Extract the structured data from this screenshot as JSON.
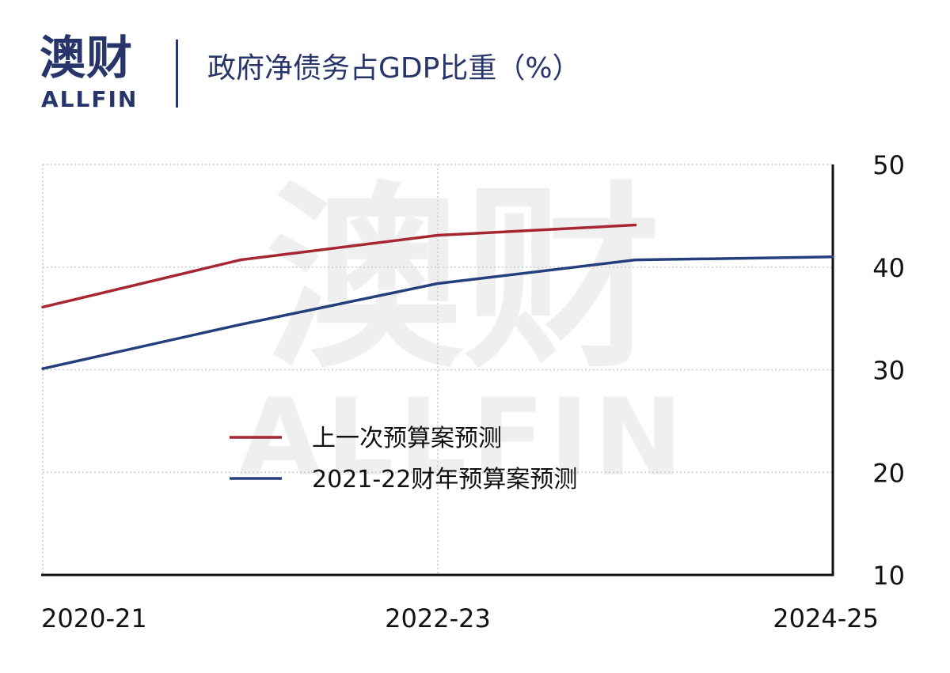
{
  "header": {
    "logo_cn": "澳财",
    "logo_en": "ALLFIN",
    "title": "政府净债务占GDP比重（%）"
  },
  "watermark": {
    "cn": "澳财",
    "en": "ALLFIN"
  },
  "colors": {
    "navy": "#27356b",
    "red": "#a62733",
    "blue": "#253f7d",
    "grid": "#cccccc",
    "watermark": "#efefef"
  },
  "chart_data": {
    "type": "line",
    "title": "政府净债务占GDP比重（%）",
    "x": [
      0,
      1,
      2,
      3,
      4
    ],
    "x_tick_labels": [
      "2020-21",
      "2022-23",
      "2024-25"
    ],
    "x_tick_positions": [
      0,
      2,
      4
    ],
    "ylim": [
      10,
      50
    ],
    "y_ticks": [
      "10",
      "20",
      "30",
      "40",
      "50"
    ],
    "y_tick_values": [
      10,
      20,
      30,
      40,
      50
    ],
    "y_axis_side": "right",
    "grid": true,
    "legend_position": "center",
    "series": [
      {
        "name": "上一次预算案预测",
        "color": "#a62733",
        "x": [
          0,
          1,
          2,
          3
        ],
        "values": [
          36.1,
          40.7,
          43.1,
          44.1
        ]
      },
      {
        "name": "2021-22财年预算案预测",
        "color": "#253f7d",
        "x": [
          0,
          1,
          2,
          3,
          4
        ],
        "values": [
          30.1,
          34.4,
          38.4,
          40.7,
          41.0
        ]
      }
    ]
  }
}
